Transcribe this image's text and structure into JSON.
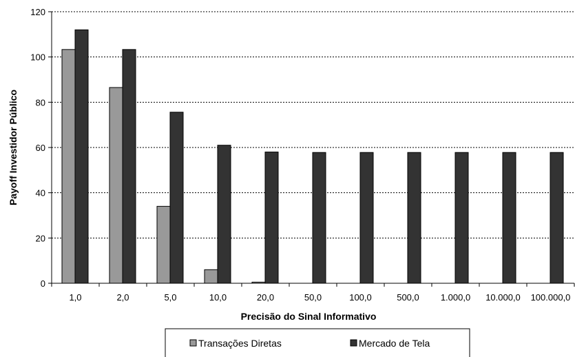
{
  "chart_data": {
    "type": "bar",
    "title": "",
    "xlabel": "Precisão do Sinal Informativo",
    "ylabel": "Payoff Investidor Público",
    "categories": [
      "1,0",
      "2,0",
      "5,0",
      "10,0",
      "20,0",
      "50,0",
      "100,0",
      "500,0",
      "1.000,0",
      "10.000,0",
      "100.000,0"
    ],
    "ylim": [
      0,
      120
    ],
    "yticks": [
      "0",
      "20",
      "40",
      "60",
      "80",
      "100",
      "120"
    ],
    "grid": "horizontal dashed",
    "legend_position": "bottom",
    "series": [
      {
        "name": "Transações Diretas",
        "color": "#999999",
        "values": [
          103.3,
          86.5,
          34.0,
          6.0,
          0.5,
          0,
          0,
          0,
          0,
          0,
          0
        ]
      },
      {
        "name": "Mercado de Tela",
        "color": "#333333",
        "values": [
          112.0,
          103.3,
          75.6,
          61.0,
          58.0,
          57.8,
          57.8,
          57.8,
          57.8,
          57.8,
          57.8
        ]
      }
    ]
  }
}
